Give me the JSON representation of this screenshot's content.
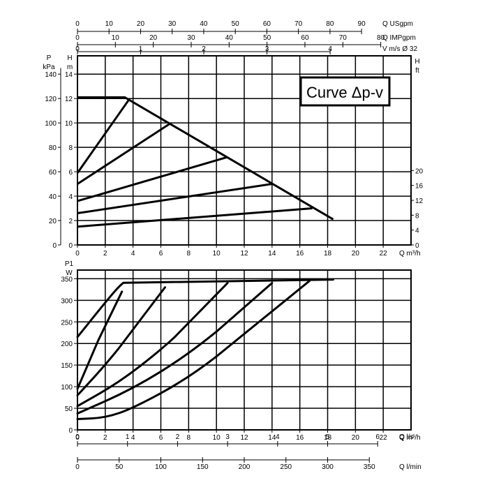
{
  "chart_data": [
    {
      "type": "line",
      "title": "Curve Δp-v",
      "xlabel": "Q m³/h",
      "x_ticks": [
        0,
        2,
        4,
        6,
        8,
        10,
        12,
        14,
        16,
        18,
        20,
        22
      ],
      "xlim": [
        0,
        24
      ],
      "ylabel_left_h": "H",
      "ylabel_left_h_unit": "m",
      "y_ticks_h": [
        0,
        2,
        4,
        6,
        8,
        10,
        12,
        14
      ],
      "ylim_h": [
        0,
        15.5
      ],
      "ylabel_left_p": "P",
      "ylabel_left_p_unit": "kPa",
      "y_ticks_p": [
        0,
        20,
        40,
        60,
        80,
        100,
        120,
        140
      ],
      "ylabel_right": "H",
      "ylabel_right_unit": "ft",
      "y_ticks_ft": [
        0,
        4,
        8,
        12,
        16,
        20
      ],
      "top_axes": [
        {
          "label": "Q USgpm",
          "ticks": [
            "0",
            "10",
            "20",
            "30",
            "40",
            "50",
            "60",
            "70",
            "80",
            "90"
          ],
          "values": [
            0,
            10,
            20,
            30,
            40,
            50,
            60,
            70,
            80,
            90
          ],
          "factor": 4.403
        },
        {
          "label": "Q IMPgpm",
          "ticks": [
            "0",
            "10",
            "20",
            "30",
            "40",
            "50",
            "60",
            "70",
            "80"
          ],
          "values": [
            0,
            10,
            20,
            30,
            40,
            50,
            60,
            70,
            80
          ],
          "factor": 3.666
        },
        {
          "label": "V m/s Ø 32",
          "ticks": [
            "0",
            "1",
            "2",
            "3",
            "4"
          ],
          "values": [
            0,
            1,
            2,
            3,
            4
          ],
          "factor": 0.22
        },
        {
          "label": "",
          "ticks": [],
          "values": [],
          "factor": 1
        }
      ],
      "grid": true,
      "series": [
        {
          "x": [
            0,
            3.4,
            18.4
          ],
          "y": [
            12.1,
            12.1,
            2.1
          ]
        },
        {
          "x": [
            0,
            3.7
          ],
          "y": [
            5.9,
            11.9
          ]
        },
        {
          "x": [
            0,
            6.6
          ],
          "y": [
            5.0,
            9.9
          ]
        },
        {
          "x": [
            0,
            10.8
          ],
          "y": [
            3.6,
            7.2
          ]
        },
        {
          "x": [
            0,
            14.0
          ],
          "y": [
            2.6,
            5.0
          ]
        },
        {
          "x": [
            0,
            16.9
          ],
          "y": [
            1.5,
            3.0
          ]
        }
      ]
    },
    {
      "type": "line",
      "xlabel": "Q m³/h",
      "x_ticks": [
        0,
        2,
        4,
        6,
        8,
        10,
        12,
        14,
        16,
        18,
        20,
        22
      ],
      "xlim": [
        0,
        24
      ],
      "ylabel": "P1",
      "ylabel_unit": "W",
      "y_ticks": [
        0,
        50,
        100,
        150,
        200,
        250,
        300,
        350
      ],
      "ylim": [
        0,
        370
      ],
      "grid": true,
      "bottom_axes": [
        {
          "label": "Q l/s",
          "ticks": [
            "0",
            "1",
            "2",
            "3",
            "4",
            "5",
            "6"
          ],
          "values": [
            0,
            1,
            2,
            3,
            4,
            5,
            6
          ]
        },
        {
          "label": "Q l/min",
          "ticks": [
            "0",
            "50",
            "100",
            "150",
            "200",
            "250",
            "300",
            "350"
          ],
          "values": [
            0,
            50,
            100,
            150,
            200,
            250,
            300,
            350
          ]
        }
      ],
      "series": [
        {
          "x": [
            0,
            1,
            2,
            3,
            3.6,
            18.4
          ],
          "y": [
            215,
            255,
            295,
            333,
            348,
            348
          ]
        },
        {
          "x": [
            0,
            1,
            2,
            3.2
          ],
          "y": [
            95,
            170,
            245,
            320
          ]
        },
        {
          "x": [
            0,
            2,
            4,
            6.3
          ],
          "y": [
            80,
            150,
            230,
            330
          ]
        },
        {
          "x": [
            0,
            3,
            6,
            8,
            10.8
          ],
          "y": [
            55,
            110,
            185,
            245,
            340
          ]
        },
        {
          "x": [
            0,
            4,
            8,
            12,
            14.0
          ],
          "y": [
            38,
            95,
            175,
            280,
            340
          ]
        },
        {
          "x": [
            0,
            2,
            4,
            8,
            12,
            16.7
          ],
          "y": [
            25,
            28,
            50,
            120,
            220,
            345
          ]
        }
      ]
    }
  ]
}
